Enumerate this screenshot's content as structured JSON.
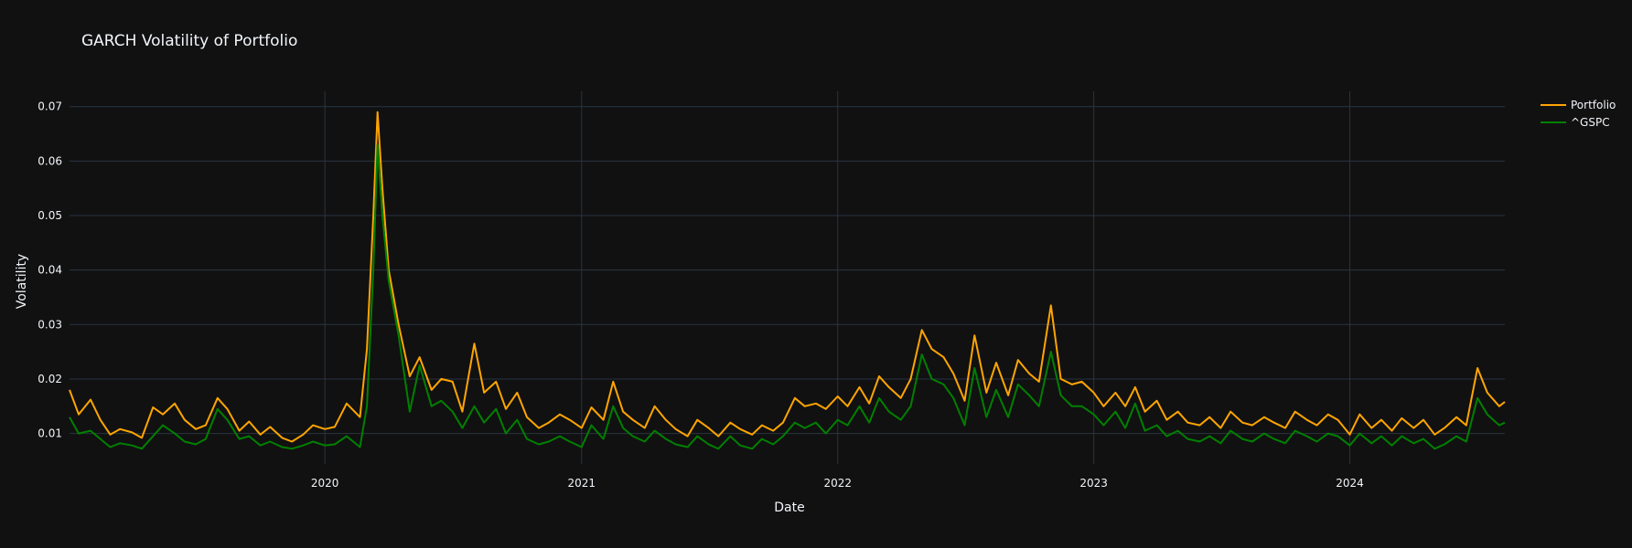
{
  "chart_data": {
    "type": "line",
    "title": "GARCH Volatility of Portfolio",
    "xlabel": "Date",
    "ylabel": "Volatility",
    "xlim": [
      "2019-01-02",
      "2024-08-09"
    ],
    "ylim": [
      0.0044,
      0.0728
    ],
    "x_ticks": [
      "2020",
      "2021",
      "2022",
      "2023",
      "2024"
    ],
    "y_ticks": [
      "0.01",
      "0.02",
      "0.03",
      "0.04",
      "0.05",
      "0.06",
      "0.07"
    ],
    "grid": true,
    "legend_position": "top-right",
    "background": "#111111",
    "grid_color": "#283442",
    "series": [
      {
        "name": "Portfolio",
        "color": "#ffa500",
        "x": [
          "2019-01-02",
          "2019-01-15",
          "2019-02-01",
          "2019-02-15",
          "2019-03-01",
          "2019-03-15",
          "2019-04-01",
          "2019-04-15",
          "2019-05-01",
          "2019-05-15",
          "2019-06-01",
          "2019-06-15",
          "2019-07-01",
          "2019-07-15",
          "2019-08-01",
          "2019-08-15",
          "2019-09-01",
          "2019-09-15",
          "2019-10-01",
          "2019-10-15",
          "2019-11-01",
          "2019-11-15",
          "2019-12-01",
          "2019-12-15",
          "2020-01-01",
          "2020-01-15",
          "2020-02-01",
          "2020-02-20",
          "2020-03-01",
          "2020-03-10",
          "2020-03-16",
          "2020-03-23",
          "2020-04-01",
          "2020-04-15",
          "2020-05-01",
          "2020-05-15",
          "2020-06-01",
          "2020-06-15",
          "2020-07-01",
          "2020-07-15",
          "2020-08-01",
          "2020-08-15",
          "2020-09-01",
          "2020-09-15",
          "2020-10-01",
          "2020-10-15",
          "2020-11-01",
          "2020-11-15",
          "2020-12-01",
          "2020-12-15",
          "2021-01-01",
          "2021-01-15",
          "2021-02-01",
          "2021-02-15",
          "2021-03-01",
          "2021-03-15",
          "2021-04-01",
          "2021-04-15",
          "2021-05-01",
          "2021-05-15",
          "2021-06-01",
          "2021-06-15",
          "2021-07-01",
          "2021-07-15",
          "2021-08-01",
          "2021-08-15",
          "2021-09-01",
          "2021-09-15",
          "2021-10-01",
          "2021-10-15",
          "2021-11-01",
          "2021-11-15",
          "2021-12-01",
          "2021-12-15",
          "2022-01-01",
          "2022-01-15",
          "2022-02-01",
          "2022-02-15",
          "2022-03-01",
          "2022-03-15",
          "2022-04-01",
          "2022-04-15",
          "2022-05-01",
          "2022-05-15",
          "2022-06-01",
          "2022-06-15",
          "2022-07-01",
          "2022-07-15",
          "2022-08-01",
          "2022-08-15",
          "2022-09-01",
          "2022-09-15",
          "2022-10-01",
          "2022-10-15",
          "2022-11-01",
          "2022-11-15",
          "2022-12-01",
          "2022-12-15",
          "2023-01-01",
          "2023-01-15",
          "2023-02-01",
          "2023-02-15",
          "2023-03-01",
          "2023-03-15",
          "2023-04-01",
          "2023-04-15",
          "2023-05-01",
          "2023-05-15",
          "2023-06-01",
          "2023-06-15",
          "2023-07-01",
          "2023-07-15",
          "2023-08-01",
          "2023-08-15",
          "2023-09-01",
          "2023-09-15",
          "2023-10-01",
          "2023-10-15",
          "2023-11-01",
          "2023-11-15",
          "2023-12-01",
          "2023-12-15",
          "2024-01-01",
          "2024-01-15",
          "2024-02-01",
          "2024-02-15",
          "2024-03-01",
          "2024-03-15",
          "2024-04-01",
          "2024-04-15",
          "2024-05-01",
          "2024-05-15",
          "2024-06-01",
          "2024-06-15",
          "2024-07-01",
          "2024-07-15",
          "2024-08-01",
          "2024-08-09"
        ],
        "values": [
          0.018,
          0.0135,
          0.0162,
          0.0125,
          0.0098,
          0.0108,
          0.0102,
          0.0092,
          0.0148,
          0.0135,
          0.0155,
          0.0125,
          0.0108,
          0.0115,
          0.0165,
          0.0145,
          0.0105,
          0.0122,
          0.0098,
          0.0112,
          0.0092,
          0.0085,
          0.0098,
          0.0115,
          0.0108,
          0.0112,
          0.0155,
          0.013,
          0.0255,
          0.05,
          0.069,
          0.055,
          0.04,
          0.03,
          0.0205,
          0.024,
          0.018,
          0.02,
          0.0195,
          0.014,
          0.0265,
          0.0175,
          0.0195,
          0.0145,
          0.0175,
          0.013,
          0.011,
          0.012,
          0.0135,
          0.0125,
          0.011,
          0.0148,
          0.0125,
          0.0195,
          0.014,
          0.0125,
          0.011,
          0.015,
          0.0125,
          0.0108,
          0.0095,
          0.0125,
          0.011,
          0.0095,
          0.012,
          0.0108,
          0.0098,
          0.0115,
          0.0105,
          0.012,
          0.0165,
          0.015,
          0.0155,
          0.0145,
          0.0168,
          0.015,
          0.0185,
          0.0155,
          0.0205,
          0.0185,
          0.0165,
          0.02,
          0.029,
          0.0255,
          0.024,
          0.021,
          0.016,
          0.028,
          0.0175,
          0.023,
          0.017,
          0.0235,
          0.021,
          0.0195,
          0.0335,
          0.02,
          0.019,
          0.0195,
          0.0175,
          0.015,
          0.0175,
          0.015,
          0.0185,
          0.014,
          0.016,
          0.0125,
          0.014,
          0.012,
          0.0115,
          0.013,
          0.011,
          0.014,
          0.012,
          0.0115,
          0.013,
          0.012,
          0.011,
          0.014,
          0.0125,
          0.0115,
          0.0135,
          0.0125,
          0.0098,
          0.0135,
          0.011,
          0.0125,
          0.0105,
          0.0128,
          0.011,
          0.0125,
          0.0098,
          0.011,
          0.013,
          0.0115,
          0.022,
          0.0175,
          0.015,
          0.0158
        ]
      },
      {
        "name": "^GSPC",
        "color": "#008000",
        "x": [
          "2019-01-02",
          "2019-01-15",
          "2019-02-01",
          "2019-02-15",
          "2019-03-01",
          "2019-03-15",
          "2019-04-01",
          "2019-04-15",
          "2019-05-01",
          "2019-05-15",
          "2019-06-01",
          "2019-06-15",
          "2019-07-01",
          "2019-07-15",
          "2019-08-01",
          "2019-08-15",
          "2019-09-01",
          "2019-09-15",
          "2019-10-01",
          "2019-10-15",
          "2019-11-01",
          "2019-11-15",
          "2019-12-01",
          "2019-12-15",
          "2020-01-01",
          "2020-01-15",
          "2020-02-01",
          "2020-02-20",
          "2020-03-01",
          "2020-03-10",
          "2020-03-16",
          "2020-03-23",
          "2020-04-01",
          "2020-04-15",
          "2020-05-01",
          "2020-05-15",
          "2020-06-01",
          "2020-06-15",
          "2020-07-01",
          "2020-07-15",
          "2020-08-01",
          "2020-08-15",
          "2020-09-01",
          "2020-09-15",
          "2020-10-01",
          "2020-10-15",
          "2020-11-01",
          "2020-11-15",
          "2020-12-01",
          "2020-12-15",
          "2021-01-01",
          "2021-01-15",
          "2021-02-01",
          "2021-02-15",
          "2021-03-01",
          "2021-03-15",
          "2021-04-01",
          "2021-04-15",
          "2021-05-01",
          "2021-05-15",
          "2021-06-01",
          "2021-06-15",
          "2021-07-01",
          "2021-07-15",
          "2021-08-01",
          "2021-08-15",
          "2021-09-01",
          "2021-09-15",
          "2021-10-01",
          "2021-10-15",
          "2021-11-01",
          "2021-11-15",
          "2021-12-01",
          "2021-12-15",
          "2022-01-01",
          "2022-01-15",
          "2022-02-01",
          "2022-02-15",
          "2022-03-01",
          "2022-03-15",
          "2022-04-01",
          "2022-04-15",
          "2022-05-01",
          "2022-05-15",
          "2022-06-01",
          "2022-06-15",
          "2022-07-01",
          "2022-07-15",
          "2022-08-01",
          "2022-08-15",
          "2022-09-01",
          "2022-09-15",
          "2022-10-01",
          "2022-10-15",
          "2022-11-01",
          "2022-11-15",
          "2022-12-01",
          "2022-12-15",
          "2023-01-01",
          "2023-01-15",
          "2023-02-01",
          "2023-02-15",
          "2023-03-01",
          "2023-03-15",
          "2023-04-01",
          "2023-04-15",
          "2023-05-01",
          "2023-05-15",
          "2023-06-01",
          "2023-06-15",
          "2023-07-01",
          "2023-07-15",
          "2023-08-01",
          "2023-08-15",
          "2023-09-01",
          "2023-09-15",
          "2023-10-01",
          "2023-10-15",
          "2023-11-01",
          "2023-11-15",
          "2023-12-01",
          "2023-12-15",
          "2024-01-01",
          "2024-01-15",
          "2024-02-01",
          "2024-02-15",
          "2024-03-01",
          "2024-03-15",
          "2024-04-01",
          "2024-04-15",
          "2024-05-01",
          "2024-05-15",
          "2024-06-01",
          "2024-06-15",
          "2024-07-01",
          "2024-07-15",
          "2024-08-01",
          "2024-08-09"
        ],
        "values": [
          0.013,
          0.01,
          0.0105,
          0.009,
          0.0075,
          0.0082,
          0.0078,
          0.0072,
          0.0095,
          0.0115,
          0.01,
          0.0085,
          0.008,
          0.009,
          0.0145,
          0.0125,
          0.009,
          0.0095,
          0.0078,
          0.0085,
          0.0075,
          0.0072,
          0.0078,
          0.0085,
          0.0078,
          0.008,
          0.0095,
          0.0075,
          0.015,
          0.04,
          0.063,
          0.05,
          0.038,
          0.028,
          0.014,
          0.0225,
          0.015,
          0.016,
          0.014,
          0.011,
          0.015,
          0.012,
          0.0145,
          0.01,
          0.0125,
          0.009,
          0.008,
          0.0085,
          0.0095,
          0.0085,
          0.0075,
          0.0115,
          0.009,
          0.015,
          0.011,
          0.0095,
          0.0085,
          0.0105,
          0.009,
          0.008,
          0.0075,
          0.0095,
          0.008,
          0.0072,
          0.0095,
          0.0078,
          0.0072,
          0.009,
          0.008,
          0.0095,
          0.012,
          0.011,
          0.012,
          0.01,
          0.0125,
          0.0115,
          0.015,
          0.012,
          0.0165,
          0.014,
          0.0125,
          0.015,
          0.0245,
          0.02,
          0.019,
          0.0165,
          0.0115,
          0.022,
          0.013,
          0.018,
          0.013,
          0.019,
          0.017,
          0.015,
          0.025,
          0.017,
          0.015,
          0.015,
          0.0135,
          0.0115,
          0.014,
          0.011,
          0.0155,
          0.0105,
          0.0115,
          0.0095,
          0.0105,
          0.009,
          0.0085,
          0.0095,
          0.0082,
          0.0105,
          0.009,
          0.0085,
          0.01,
          0.009,
          0.0082,
          0.0105,
          0.0095,
          0.0085,
          0.01,
          0.0095,
          0.0078,
          0.01,
          0.0082,
          0.0095,
          0.0078,
          0.0095,
          0.0082,
          0.009,
          0.0072,
          0.008,
          0.0095,
          0.0085,
          0.0165,
          0.0135,
          0.0115,
          0.012
        ]
      }
    ]
  }
}
